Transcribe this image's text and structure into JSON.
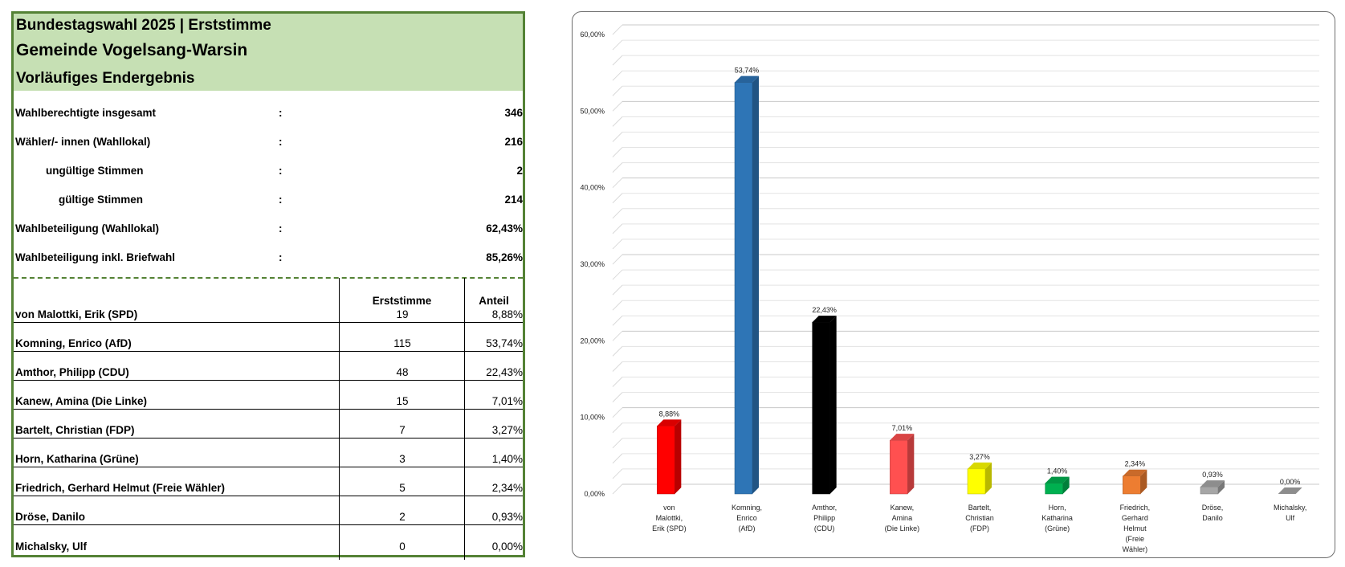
{
  "table": {
    "title_line1": "Bundestagswahl 2025  |  Erststimme",
    "title_line2": "Gemeinde Vogelsang-Warsin",
    "title_line3": "Vorläufiges Endergebnis",
    "colon": ":",
    "stats": [
      {
        "label": "Wahlberechtigte insgesamt",
        "value": "346"
      },
      {
        "label": "Wähler/- innen (Wahllokal)",
        "value": "216"
      },
      {
        "label": "ungültige Stimmen",
        "value": "2"
      },
      {
        "label": "gültige Stimmen",
        "value": "214"
      },
      {
        "label": "Wahlbeteiligung (Wahllokal)",
        "value": "62,43%"
      },
      {
        "label": "Wahlbeteiligung inkl. Briefwahl",
        "value": "85,26%"
      }
    ],
    "col_votes": "Erststimme",
    "col_share": "Anteil",
    "rows": [
      {
        "name": "von Malottki, Erik (SPD)",
        "votes": "19",
        "share": "8,88%"
      },
      {
        "name": "Komning, Enrico (AfD)",
        "votes": "115",
        "share": "53,74%"
      },
      {
        "name": "Amthor, Philipp (CDU)",
        "votes": "48",
        "share": "22,43%"
      },
      {
        "name": "Kanew, Amina (Die Linke)",
        "votes": "15",
        "share": "7,01%"
      },
      {
        "name": "Bartelt, Christian (FDP)",
        "votes": "7",
        "share": "3,27%"
      },
      {
        "name": "Horn, Katharina (Grüne)",
        "votes": "3",
        "share": "1,40%"
      },
      {
        "name": "Friedrich, Gerhard Helmut (Freie Wähler)",
        "votes": "5",
        "share": "2,34%"
      },
      {
        "name": "Dröse, Danilo",
        "votes": "2",
        "share": "0,93%"
      },
      {
        "name": "Michalsky, Ulf",
        "votes": "0",
        "share": "0,00%"
      }
    ]
  },
  "chart_data": {
    "type": "bar",
    "title": "",
    "xlabel": "",
    "ylabel": "",
    "ylim": [
      0,
      60
    ],
    "y_ticks": [
      0,
      10,
      20,
      30,
      40,
      50,
      60
    ],
    "y_tick_labels": [
      "0,00%",
      "10,00%",
      "20,00%",
      "30,00%",
      "40,00%",
      "50,00%",
      "60,00%"
    ],
    "grid": true,
    "legend": "none",
    "categories": [
      [
        "von",
        "Malottki,",
        "Erik (SPD)"
      ],
      [
        "Komning,",
        "Enrico",
        "(AfD)"
      ],
      [
        "Amthor,",
        "Philipp",
        "(CDU)"
      ],
      [
        "Kanew,",
        "Amina",
        "(Die Linke)"
      ],
      [
        "Bartelt,",
        "Christian",
        "(FDP)"
      ],
      [
        "Horn,",
        "Katharina",
        "(Grüne)"
      ],
      [
        "Friedrich,",
        "Gerhard",
        "Helmut",
        "(Freie",
        "Wähler)"
      ],
      [
        "Dröse,",
        "Danilo"
      ],
      [
        "Michalsky,",
        "Ulf"
      ]
    ],
    "values": [
      8.88,
      53.74,
      22.43,
      7.01,
      3.27,
      1.4,
      2.34,
      0.93,
      0.0
    ],
    "data_labels": [
      "8,88%",
      "53,74%",
      "22,43%",
      "7,01%",
      "3,27%",
      "1,40%",
      "2,34%",
      "0,93%",
      "0,00%"
    ],
    "colors": [
      "#ff0000",
      "#2e75b6",
      "#000000",
      "#ff5050",
      "#ffff00",
      "#00b050",
      "#ed7d31",
      "#a6a6a6",
      "#a6a6a6"
    ]
  }
}
